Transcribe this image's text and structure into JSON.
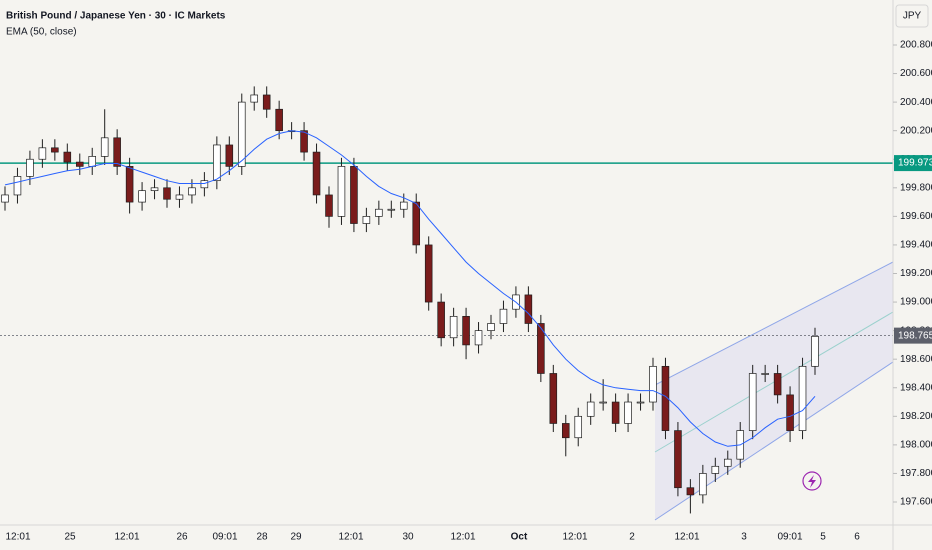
{
  "chart_data": {
    "type": "candlestick",
    "title": "British Pound / Japanese Yen · 30 · IC Markets",
    "indicator": "EMA (50, close)",
    "currency": "JPY",
    "ylim": [
      197.439,
      201.115
    ],
    "yticks": [
      {
        "value": 197.6,
        "label": "197.600"
      },
      {
        "value": 197.8,
        "label": "197.800"
      },
      {
        "value": 198.0,
        "label": "198.000"
      },
      {
        "value": 198.2,
        "label": "198.200"
      },
      {
        "value": 198.4,
        "label": "198.400"
      },
      {
        "value": 198.6,
        "label": "198.600"
      },
      {
        "value": 198.8,
        "label": "198.800"
      },
      {
        "value": 199.0,
        "label": "199.000"
      },
      {
        "value": 199.2,
        "label": "199.200"
      },
      {
        "value": 199.4,
        "label": "199.400"
      },
      {
        "value": 199.6,
        "label": "199.600"
      },
      {
        "value": 199.8,
        "label": "199.800"
      },
      {
        "value": 200.0,
        "label": "200.000"
      },
      {
        "value": 200.2,
        "label": "200.200"
      },
      {
        "value": 200.4,
        "label": "200.400"
      },
      {
        "value": 200.6,
        "label": "200.600"
      },
      {
        "value": 200.8,
        "label": "200.800"
      }
    ],
    "x_labels": [
      "12:01",
      "25",
      "12:01",
      "26",
      "09:01",
      "28",
      "29",
      "12:01",
      "30",
      "12:01",
      "Oct",
      "12:01",
      "2",
      "12:01",
      "3",
      "09:01",
      "5",
      "6"
    ],
    "grid": false,
    "up_color": "#ffffff",
    "down_color": "#7a1c1c",
    "wick_color": "#1e1e1e",
    "open": [
      199.7,
      199.75,
      199.88,
      200.0,
      200.08,
      200.05,
      199.98,
      199.95,
      200.02,
      200.15,
      199.95,
      199.7,
      199.78,
      199.8,
      199.72,
      199.75,
      199.8,
      199.85,
      200.1,
      199.95,
      200.4,
      200.45,
      200.35,
      200.2,
      200.2,
      200.05,
      199.75,
      199.6,
      199.95,
      199.55,
      199.6,
      199.65,
      199.65,
      199.7,
      199.4,
      199.0,
      198.75,
      198.9,
      198.7,
      198.8,
      198.85,
      198.95,
      199.05,
      198.85,
      198.5,
      198.15,
      198.05,
      198.2,
      198.3,
      198.3,
      198.15,
      198.3,
      198.3,
      198.55,
      198.1,
      197.7,
      197.65,
      197.8,
      197.85,
      197.9,
      198.1,
      198.5,
      198.5,
      198.35,
      198.1,
      198.55
    ],
    "high": [
      199.81,
      199.94,
      200.06,
      200.14,
      200.14,
      200.11,
      200.04,
      200.08,
      200.35,
      200.21,
      200.01,
      199.84,
      199.86,
      199.86,
      199.81,
      199.86,
      199.91,
      200.16,
      200.16,
      200.46,
      200.51,
      200.51,
      200.41,
      200.26,
      200.26,
      200.11,
      199.81,
      200.01,
      200.01,
      199.66,
      199.71,
      199.71,
      199.76,
      199.76,
      199.46,
      199.06,
      198.96,
      198.96,
      198.86,
      198.91,
      199.01,
      199.11,
      199.11,
      198.91,
      198.56,
      198.21,
      198.26,
      198.36,
      198.46,
      198.36,
      198.36,
      198.36,
      198.61,
      198.61,
      198.16,
      197.76,
      197.86,
      197.91,
      197.96,
      198.16,
      198.56,
      198.56,
      198.56,
      198.41,
      198.61,
      198.82
    ],
    "low": [
      199.64,
      199.69,
      199.82,
      199.94,
      199.99,
      199.92,
      199.89,
      199.89,
      199.96,
      199.89,
      199.62,
      199.64,
      199.72,
      199.66,
      199.66,
      199.69,
      199.74,
      199.79,
      199.89,
      199.89,
      200.34,
      200.29,
      200.14,
      200.14,
      199.99,
      199.69,
      199.52,
      199.54,
      199.49,
      199.49,
      199.54,
      199.59,
      199.59,
      199.34,
      198.94,
      198.69,
      198.69,
      198.6,
      198.64,
      198.74,
      198.79,
      198.89,
      198.79,
      198.44,
      198.09,
      197.92,
      197.99,
      198.14,
      198.24,
      198.09,
      198.09,
      198.24,
      198.24,
      198.04,
      197.64,
      197.52,
      197.59,
      197.74,
      197.79,
      197.84,
      198.04,
      198.44,
      198.29,
      198.02,
      198.04,
      198.49
    ],
    "close": [
      199.75,
      199.88,
      200.0,
      200.08,
      200.05,
      199.98,
      199.95,
      200.02,
      200.15,
      199.95,
      199.7,
      199.78,
      199.8,
      199.72,
      199.75,
      199.8,
      199.85,
      200.1,
      199.95,
      200.4,
      200.45,
      200.35,
      200.2,
      200.2,
      200.05,
      199.75,
      199.6,
      199.95,
      199.55,
      199.6,
      199.65,
      199.65,
      199.7,
      199.4,
      199.0,
      198.75,
      198.9,
      198.7,
      198.8,
      198.85,
      198.95,
      199.05,
      198.85,
      198.5,
      198.15,
      198.05,
      198.2,
      198.3,
      198.3,
      198.15,
      198.3,
      198.3,
      198.55,
      198.1,
      197.7,
      197.65,
      197.8,
      197.85,
      197.9,
      198.1,
      198.5,
      198.5,
      198.35,
      198.1,
      198.55,
      198.76
    ],
    "ema": {
      "color": "#2962ff",
      "values": [
        199.82,
        199.84,
        199.86,
        199.88,
        199.9,
        199.92,
        199.93,
        199.95,
        199.97,
        199.97,
        199.94,
        199.91,
        199.88,
        199.85,
        199.83,
        199.83,
        199.83,
        199.86,
        199.92,
        199.99,
        200.07,
        200.14,
        200.18,
        200.2,
        200.19,
        200.15,
        200.09,
        200.03,
        199.96,
        199.88,
        199.81,
        199.76,
        199.73,
        199.69,
        199.58,
        199.48,
        199.38,
        199.28,
        199.2,
        199.13,
        199.06,
        199.0,
        198.92,
        198.82,
        198.7,
        198.6,
        198.52,
        198.46,
        198.42,
        198.4,
        198.39,
        198.38,
        198.38,
        198.34,
        198.26,
        198.16,
        198.08,
        198.02,
        197.99,
        198.0,
        198.05,
        198.12,
        198.18,
        198.2,
        198.24,
        198.34
      ]
    },
    "hlines": [
      {
        "value": 199.973,
        "label": "199.973",
        "color": "#089981"
      },
      {
        "value": 198.765,
        "label": "198.765",
        "color": "#5d606b"
      }
    ]
  }
}
